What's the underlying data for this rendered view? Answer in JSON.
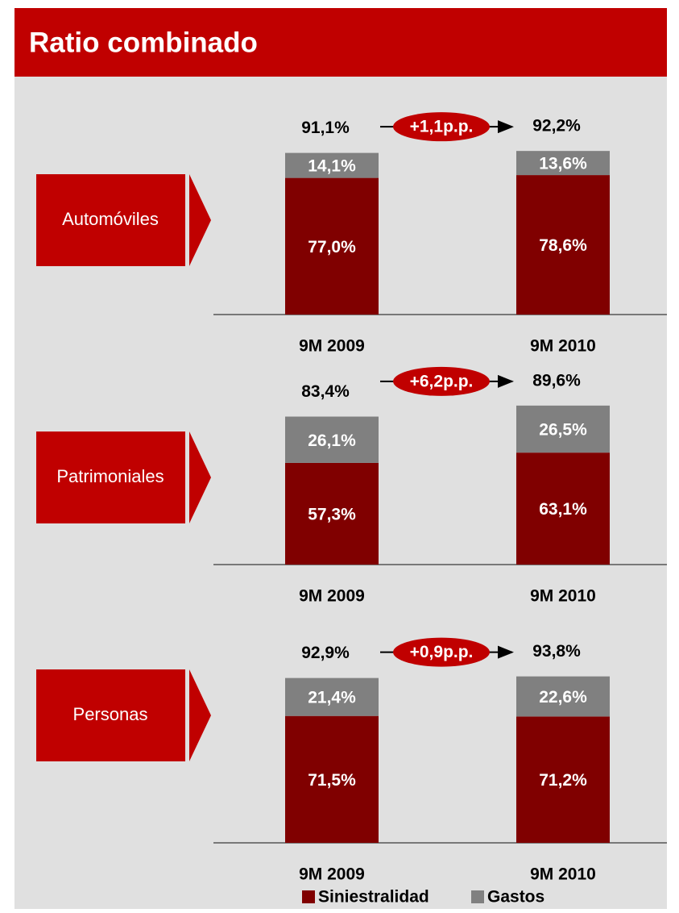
{
  "title": "Ratio combinado",
  "chart_data": [
    {
      "type": "stacked_bar",
      "panel_label": "Automóviles",
      "ylim": [
        0,
        100
      ],
      "categories": [
        "9M 2009",
        "9M 2010"
      ],
      "series": [
        {
          "name": "Siniestralidad",
          "color": "#800000",
          "values": [
            77.0,
            78.6
          ],
          "value_labels": [
            "77,0%",
            "78,6%"
          ]
        },
        {
          "name": "Gastos",
          "color": "#808080",
          "values": [
            14.1,
            13.6
          ],
          "value_labels": [
            "14,1%",
            "13,6%"
          ]
        }
      ],
      "totals": {
        "values": [
          91.1,
          92.2
        ],
        "value_labels": [
          "91,1%",
          "92,2%"
        ]
      },
      "change": "+1,1p.p."
    },
    {
      "type": "stacked_bar",
      "panel_label": "Patrimoniales",
      "ylim": [
        0,
        100
      ],
      "categories": [
        "9M 2009",
        "9M 2010"
      ],
      "series": [
        {
          "name": "Siniestralidad",
          "color": "#800000",
          "values": [
            57.3,
            63.1
          ],
          "value_labels": [
            "57,3%",
            "63,1%"
          ]
        },
        {
          "name": "Gastos",
          "color": "#808080",
          "values": [
            26.1,
            26.5
          ],
          "value_labels": [
            "26,1%",
            "26,5%"
          ]
        }
      ],
      "totals": {
        "values": [
          83.4,
          89.6
        ],
        "value_labels": [
          "83,4%",
          "89,6%"
        ]
      },
      "change": "+6,2p.p."
    },
    {
      "type": "stacked_bar",
      "panel_label": "Personas",
      "ylim": [
        0,
        100
      ],
      "categories": [
        "9M 2009",
        "9M 2010"
      ],
      "series": [
        {
          "name": "Siniestralidad",
          "color": "#800000",
          "values": [
            71.5,
            71.2
          ],
          "value_labels": [
            "71,5%",
            "71,2%"
          ]
        },
        {
          "name": "Gastos",
          "color": "#808080",
          "values": [
            21.4,
            22.6
          ],
          "value_labels": [
            "21,4%",
            "22,6%"
          ]
        }
      ],
      "totals": {
        "values": [
          92.9,
          93.8
        ],
        "value_labels": [
          "92,9%",
          "93,8%"
        ]
      },
      "change": "+0,9p.p."
    }
  ]
}
